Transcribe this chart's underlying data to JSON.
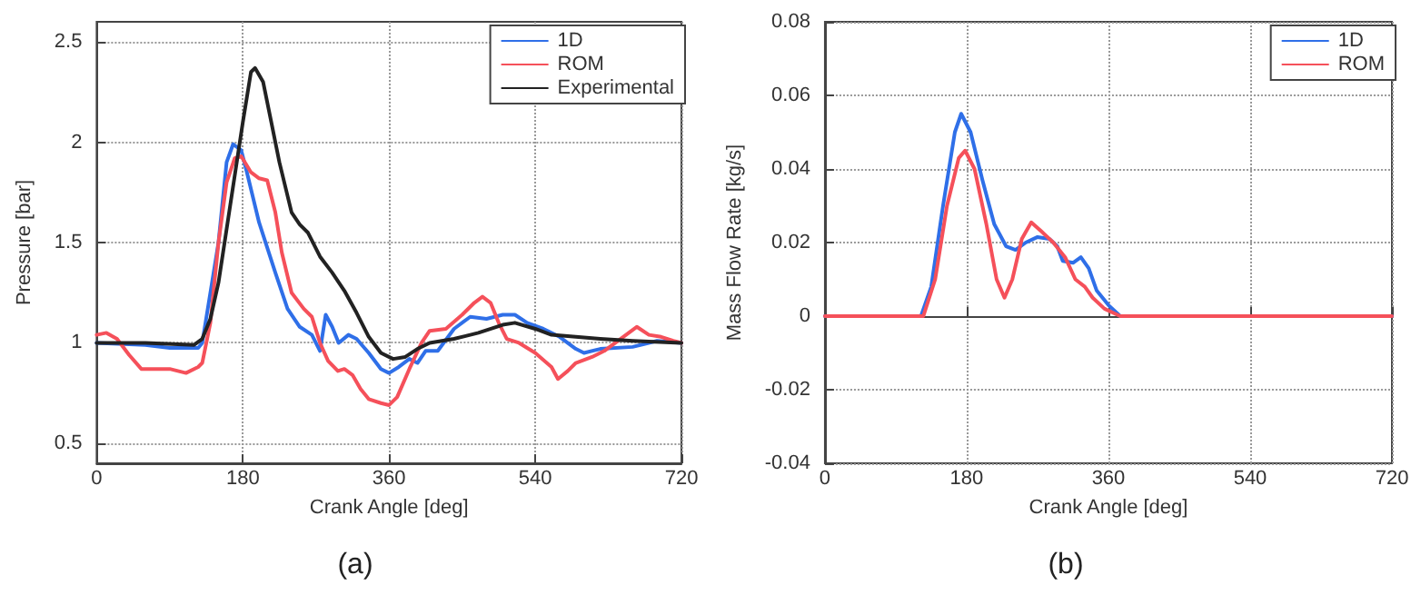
{
  "chart_data": [
    {
      "type": "line",
      "xlabel": "Crank Angle [deg]",
      "ylabel": "Pressure [bar]",
      "xlim": [
        0,
        720
      ],
      "xticks": [
        0,
        180,
        360,
        540,
        720
      ],
      "ylim": [
        0.4,
        2.6
      ],
      "yticks": [
        0.5,
        1,
        1.5,
        2,
        2.5
      ],
      "grid": true,
      "legend": "top right",
      "line_style": "solid",
      "marker": "none",
      "annotations": [
        "(a)"
      ],
      "series": [
        {
          "name": "1D",
          "color": "#2f6fe8",
          "x": [
            0,
            60,
            90,
            125,
            130,
            150,
            160,
            168,
            178,
            185,
            200,
            220,
            235,
            250,
            265,
            275,
            282,
            290,
            298,
            310,
            320,
            335,
            350,
            360,
            372,
            385,
            395,
            405,
            420,
            440,
            460,
            480,
            500,
            515,
            530,
            550,
            570,
            590,
            600,
            620,
            660,
            690,
            720
          ],
          "values": [
            1.0,
            0.99,
            0.975,
            0.975,
            1.0,
            1.5,
            1.9,
            1.99,
            1.96,
            1.85,
            1.6,
            1.35,
            1.17,
            1.08,
            1.04,
            0.96,
            1.14,
            1.08,
            1.0,
            1.04,
            1.02,
            0.95,
            0.87,
            0.85,
            0.88,
            0.92,
            0.9,
            0.96,
            0.96,
            1.07,
            1.13,
            1.12,
            1.14,
            1.14,
            1.1,
            1.07,
            1.03,
            0.97,
            0.95,
            0.97,
            0.98,
            1.01,
            1.0
          ]
        },
        {
          "name": "ROM",
          "color": "#f5505a",
          "x": [
            0,
            12,
            25,
            40,
            55,
            70,
            90,
            110,
            125,
            130,
            140,
            150,
            160,
            170,
            178,
            190,
            200,
            210,
            220,
            228,
            240,
            255,
            265,
            275,
            285,
            297,
            305,
            315,
            325,
            335,
            350,
            360,
            370,
            385,
            400,
            410,
            430,
            450,
            465,
            475,
            485,
            495,
            505,
            520,
            540,
            560,
            568,
            580,
            590,
            610,
            625,
            645,
            665,
            680,
            695,
            710,
            720
          ],
          "values": [
            1.04,
            1.05,
            1.02,
            0.94,
            0.87,
            0.87,
            0.87,
            0.85,
            0.88,
            0.9,
            1.1,
            1.5,
            1.8,
            1.92,
            1.93,
            1.85,
            1.82,
            1.81,
            1.65,
            1.45,
            1.25,
            1.17,
            1.13,
            1.0,
            0.91,
            0.86,
            0.87,
            0.84,
            0.77,
            0.72,
            0.7,
            0.69,
            0.73,
            0.87,
            1.0,
            1.06,
            1.07,
            1.14,
            1.2,
            1.23,
            1.2,
            1.1,
            1.02,
            1.0,
            0.95,
            0.88,
            0.82,
            0.86,
            0.9,
            0.93,
            0.96,
            1.02,
            1.08,
            1.04,
            1.03,
            1.01,
            1.0
          ]
        },
        {
          "name": "Experimental",
          "color": "#222222",
          "x": [
            0,
            60,
            120,
            130,
            140,
            150,
            165,
            180,
            190,
            195,
            205,
            215,
            225,
            240,
            250,
            260,
            275,
            290,
            305,
            320,
            335,
            350,
            365,
            380,
            395,
            410,
            440,
            470,
            500,
            515,
            540,
            560,
            590,
            620,
            660,
            720
          ],
          "values": [
            1.0,
            1.0,
            0.99,
            1.02,
            1.12,
            1.3,
            1.7,
            2.1,
            2.35,
            2.37,
            2.3,
            2.1,
            1.9,
            1.65,
            1.59,
            1.55,
            1.43,
            1.35,
            1.26,
            1.15,
            1.03,
            0.95,
            0.92,
            0.93,
            0.97,
            1.0,
            1.02,
            1.05,
            1.09,
            1.1,
            1.07,
            1.04,
            1.03,
            1.02,
            1.01,
            1.0
          ]
        }
      ]
    },
    {
      "type": "line",
      "xlabel": "Crank Angle [deg]",
      "ylabel": "Mass Flow Rate [kg/s]",
      "xlim": [
        0,
        720
      ],
      "xticks": [
        0,
        180,
        360,
        540,
        720
      ],
      "ylim": [
        -0.04,
        0.08
      ],
      "yticks": [
        -0.04,
        -0.02,
        0,
        0.02,
        0.04,
        0.06,
        0.08
      ],
      "grid": true,
      "legend": "top right",
      "line_style": "solid",
      "marker": "none",
      "annotations": [
        "(b)"
      ],
      "series": [
        {
          "name": "1D",
          "color": "#2f6fe8",
          "x": [
            0,
            122,
            135,
            150,
            165,
            173,
            185,
            200,
            215,
            230,
            242,
            255,
            270,
            285,
            295,
            302,
            315,
            325,
            335,
            345,
            360,
            375,
            720
          ],
          "values": [
            0,
            0,
            0.008,
            0.03,
            0.05,
            0.055,
            0.05,
            0.037,
            0.025,
            0.019,
            0.018,
            0.02,
            0.0215,
            0.021,
            0.019,
            0.015,
            0.0145,
            0.016,
            0.013,
            0.007,
            0.003,
            0,
            0
          ]
        },
        {
          "name": "ROM",
          "color": "#f5505a",
          "x": [
            0,
            125,
            140,
            155,
            170,
            178,
            190,
            205,
            218,
            228,
            238,
            250,
            262,
            275,
            290,
            305,
            318,
            330,
            340,
            355,
            375,
            720
          ],
          "values": [
            0,
            0,
            0.01,
            0.03,
            0.043,
            0.045,
            0.04,
            0.025,
            0.01,
            0.005,
            0.01,
            0.021,
            0.0255,
            0.023,
            0.02,
            0.016,
            0.01,
            0.008,
            0.005,
            0.002,
            0,
            0
          ]
        }
      ]
    }
  ]
}
